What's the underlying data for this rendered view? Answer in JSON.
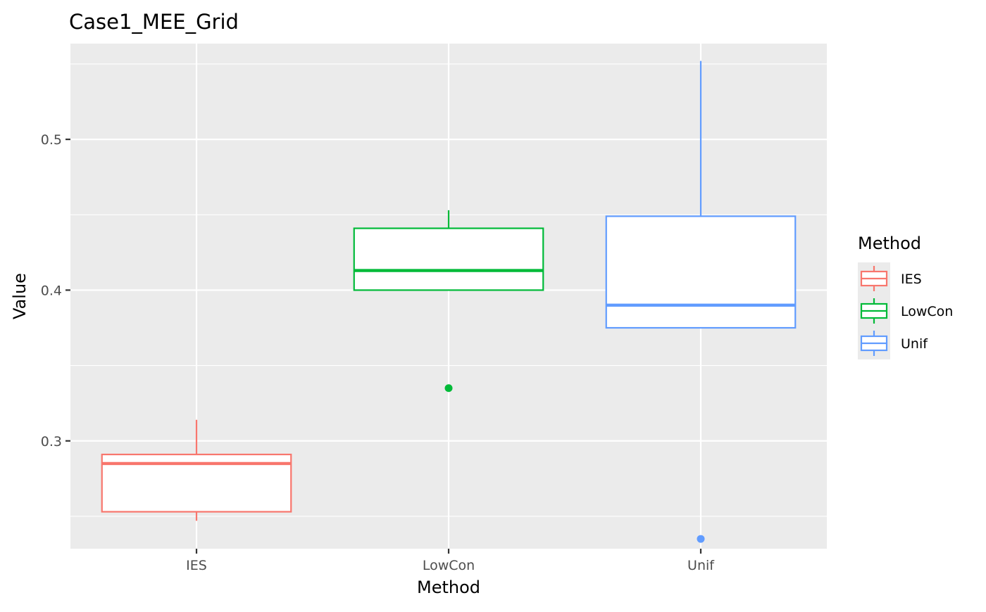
{
  "chart_data": {
    "type": "boxplot",
    "title": "Case1_MEE_Grid",
    "xlabel": "Method",
    "ylabel": "Value",
    "categories": [
      "IES",
      "LowCon",
      "Unif"
    ],
    "ylim": [
      0.2285,
      0.5635
    ],
    "y_ticks": [
      0.3,
      0.4,
      0.5
    ],
    "y_tick_labels": [
      "0.3",
      "0.4",
      "0.5"
    ],
    "grid": true,
    "legend": {
      "title": "Method",
      "placement": "right",
      "entries": [
        "IES",
        "LowCon",
        "Unif"
      ]
    },
    "series": [
      {
        "name": "IES",
        "color": "#F8766D",
        "whisker_low": 0.247,
        "q1": 0.253,
        "median": 0.285,
        "q3": 0.291,
        "whisker_high": 0.314,
        "outliers": []
      },
      {
        "name": "LowCon",
        "color": "#00BA38",
        "whisker_low": 0.4,
        "q1": 0.4,
        "median": 0.413,
        "q3": 0.441,
        "whisker_high": 0.453,
        "outliers": [
          0.335
        ]
      },
      {
        "name": "Unif",
        "color": "#619CFF",
        "whisker_low": 0.375,
        "q1": 0.375,
        "median": 0.39,
        "q3": 0.449,
        "whisker_high": 0.552,
        "outliers": [
          0.235
        ]
      }
    ]
  }
}
